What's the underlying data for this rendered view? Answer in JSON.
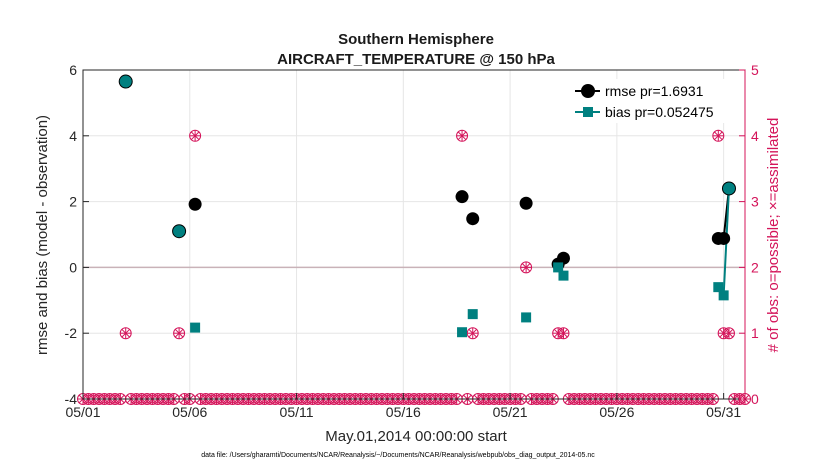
{
  "chart_data": {
    "type": "scatter",
    "title": "Southern Hemisphere",
    "subtitle": "AIRCRAFT_TEMPERATURE @ 150 hPa",
    "xlabel": "May.01,2014 00:00:00 start",
    "ylabel": "rmse and bias (model - observation)",
    "y2label": "# of obs: o=possible; ×=assimilated",
    "x_ticks": [
      "05/01",
      "05/06",
      "05/11",
      "05/16",
      "05/21",
      "05/26",
      "05/31"
    ],
    "y_ticks": [
      "-4",
      "-2",
      "0",
      "2",
      "4",
      "6"
    ],
    "y2_ticks": [
      "0",
      "1",
      "2",
      "3",
      "4",
      "5"
    ],
    "xlim": [
      0,
      31
    ],
    "ylim": [
      -4,
      6
    ],
    "y2lim": [
      0,
      5
    ],
    "grid": true,
    "legend_position": "top-right",
    "zero_line": true,
    "series": [
      {
        "name": "rmse pr=1.6931",
        "axis": "left",
        "marker": "circle",
        "color": "#000000",
        "points": [
          [
            2.0,
            5.65
          ],
          [
            4.5,
            1.1
          ],
          [
            5.25,
            1.92
          ],
          [
            17.75,
            2.15
          ],
          [
            18.25,
            1.48
          ],
          [
            20.75,
            1.95
          ],
          [
            22.25,
            0.1
          ],
          [
            22.5,
            0.28
          ],
          [
            29.75,
            0.88
          ],
          [
            30.0,
            0.88
          ],
          [
            30.25,
            2.4
          ]
        ],
        "connected_tail": [
          [
            29.75,
            0.88
          ],
          [
            30.0,
            0.88
          ],
          [
            30.25,
            2.4
          ]
        ]
      },
      {
        "name": "bias pr=0.052475",
        "axis": "left",
        "marker": "square",
        "color": "#008080",
        "points": [
          [
            2.0,
            5.65
          ],
          [
            4.5,
            1.1
          ],
          [
            5.25,
            -1.83
          ],
          [
            17.75,
            -1.97
          ],
          [
            18.25,
            -1.42
          ],
          [
            20.75,
            -1.52
          ],
          [
            22.25,
            0.0
          ],
          [
            22.5,
            -0.25
          ],
          [
            29.75,
            -0.6
          ],
          [
            30.0,
            -0.85
          ],
          [
            30.25,
            2.4
          ]
        ],
        "connected_tail": [
          [
            29.75,
            -0.6
          ],
          [
            30.0,
            -0.85
          ],
          [
            30.25,
            2.4
          ]
        ]
      },
      {
        "name": "# of obs",
        "axis": "right",
        "marker": "circle-x",
        "color": "#d4145a",
        "points": [
          [
            2.0,
            1
          ],
          [
            4.5,
            1
          ],
          [
            5.25,
            4
          ],
          [
            17.75,
            4
          ],
          [
            18.25,
            1
          ],
          [
            20.75,
            2
          ],
          [
            22.25,
            1
          ],
          [
            22.5,
            1
          ],
          [
            29.75,
            4
          ],
          [
            30.0,
            1
          ],
          [
            30.25,
            1
          ]
        ]
      }
    ],
    "zero_count_ticks": 0
  },
  "footer": {
    "data_file": "data file: /Users/gharamti/Documents/NCAR/Reanalysis/~/Documents/NCAR/Reanalysis/webpub/obs_diag_output_2014-05.nc"
  },
  "colors": {
    "rmse": "#000000",
    "bias": "#008080",
    "obs": "#d4145a",
    "grid": "#e6e6e6",
    "zero": "#c9b2b8"
  }
}
